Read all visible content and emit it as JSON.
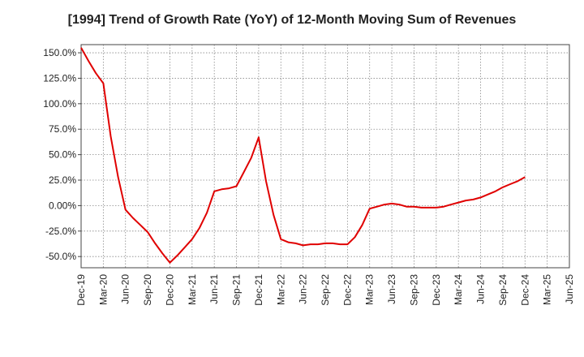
{
  "chart_data": {
    "type": "line",
    "title": "[1994]  Trend of Growth Rate (YoY) of 12-Month Moving Sum of Revenues",
    "xlabel": "",
    "ylabel": "",
    "x_ticks": [
      "Dec-19",
      "Mar-20",
      "Jun-20",
      "Sep-20",
      "Dec-20",
      "Mar-21",
      "Jun-21",
      "Sep-21",
      "Dec-21",
      "Mar-22",
      "Jun-22",
      "Sep-22",
      "Dec-22",
      "Mar-23",
      "Jun-23",
      "Sep-23",
      "Dec-23",
      "Mar-24",
      "Jun-24",
      "Sep-24",
      "Dec-24",
      "Mar-25",
      "Jun-25"
    ],
    "y_ticks": [
      "150.0%",
      "125.0%",
      "100.0%",
      "75.0%",
      "50.0%",
      "25.0%",
      "0.00%",
      "-25.0%",
      "-50.0%"
    ],
    "y_tick_values": [
      150,
      125,
      100,
      75,
      50,
      25,
      0,
      -25,
      -50
    ],
    "ylim": [
      -61,
      158
    ],
    "xlim": [
      0,
      66
    ],
    "grid": true,
    "series": [
      {
        "color": "#e00000",
        "x": [
          0,
          1,
          2,
          3,
          4,
          5,
          6,
          7,
          8,
          9,
          10,
          11,
          12,
          13,
          14,
          15,
          16,
          17,
          18,
          19,
          20,
          21,
          22,
          23,
          24,
          25,
          26,
          27,
          28,
          29,
          30,
          31,
          32,
          33,
          34,
          35,
          36,
          37,
          38,
          39,
          40,
          41,
          42,
          43,
          44,
          45,
          46,
          47,
          48,
          49,
          50,
          51,
          52,
          53,
          54,
          55,
          56,
          57,
          58,
          59,
          60
        ],
        "values": [
          155,
          142,
          130,
          120,
          68,
          28,
          -4,
          -12,
          -19,
          -26,
          -37,
          -47,
          -56,
          -49,
          -41,
          -33,
          -22,
          -7,
          14,
          16,
          17,
          19,
          33,
          47,
          67,
          24,
          -9,
          -33,
          -36,
          -37,
          -39,
          -38,
          -38,
          -37,
          -37,
          -38,
          -38,
          -31,
          -19,
          -3,
          -1,
          1,
          2,
          1,
          -1,
          -1,
          -2,
          -2,
          -2,
          -1,
          1,
          3,
          5,
          6,
          8,
          11,
          14,
          18,
          21,
          24,
          28
        ]
      }
    ]
  }
}
